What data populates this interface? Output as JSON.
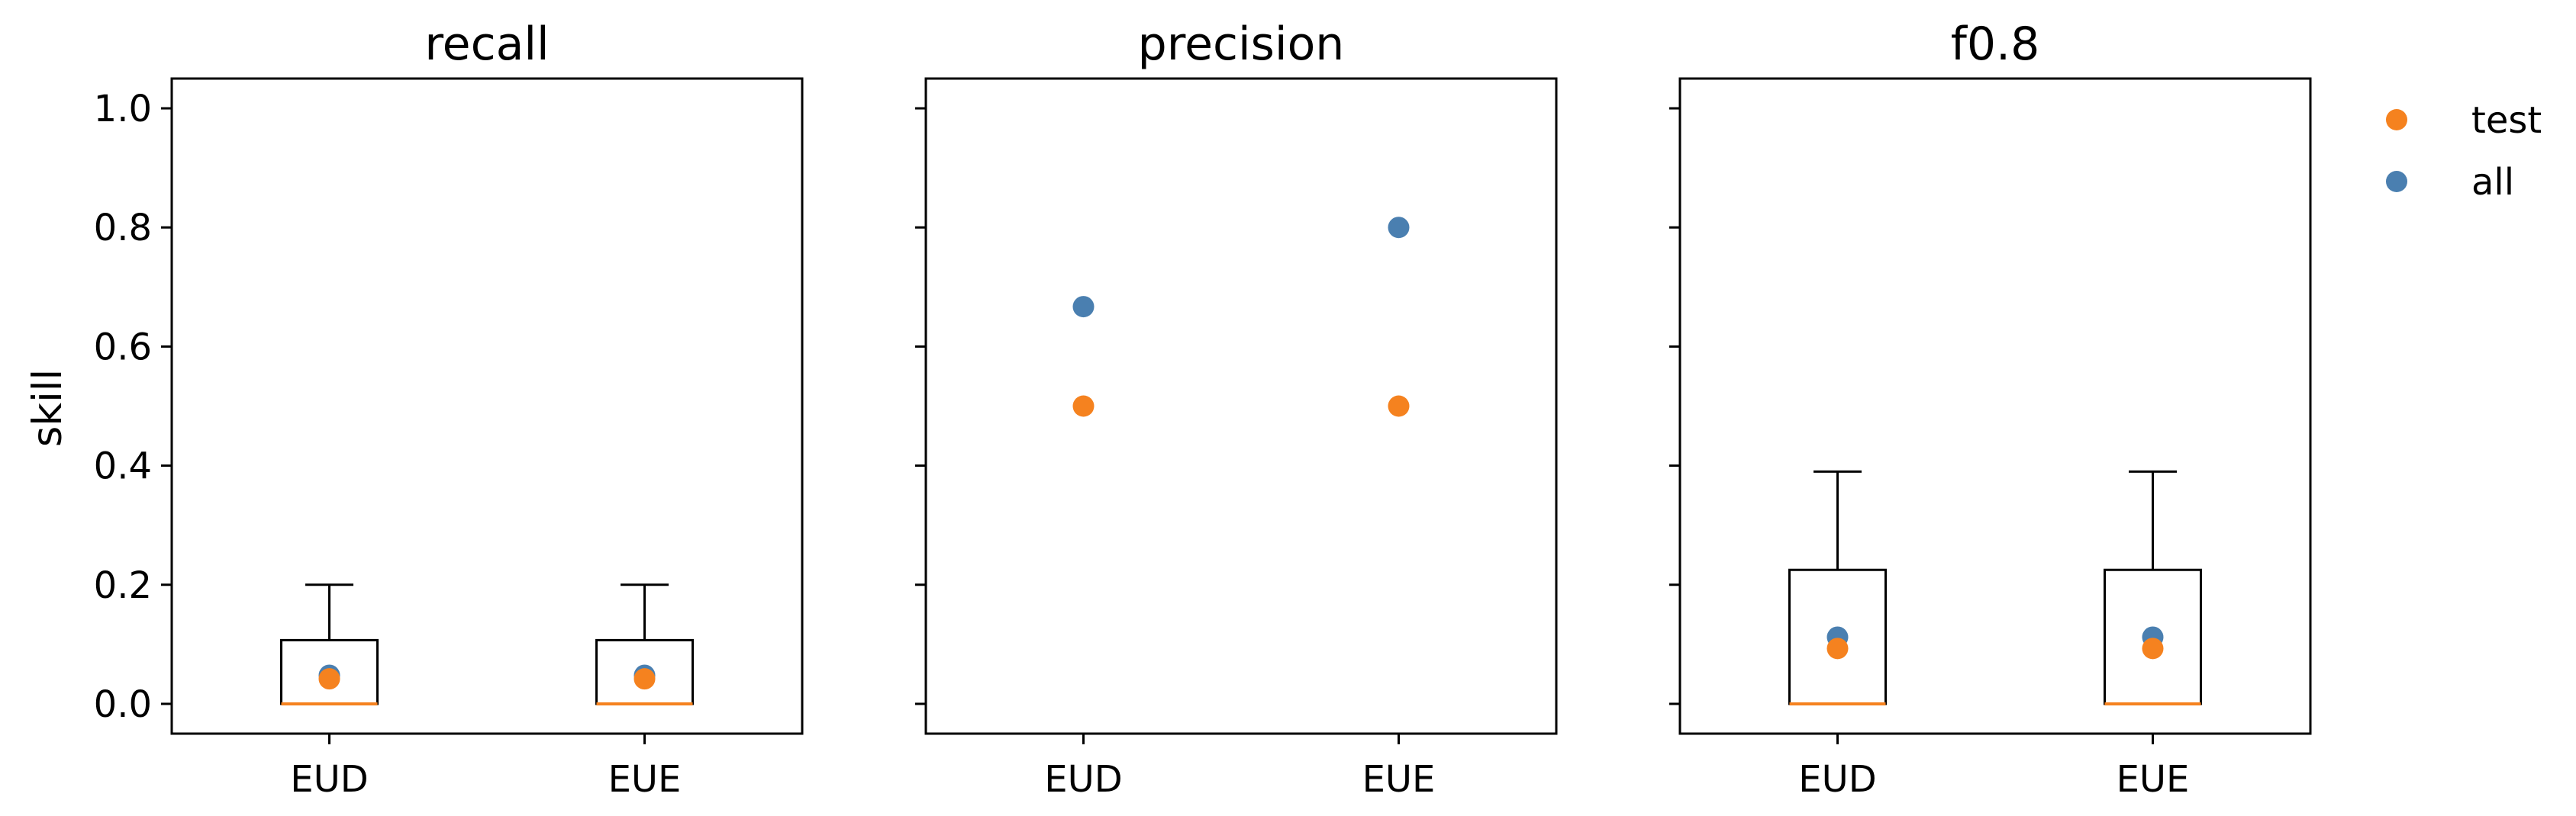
{
  "chart_data": {
    "type": "scatter",
    "layout": "three side-by-side panels sharing the y axis, each with box plots and dot markers",
    "ylabel": "skill",
    "ylim": [
      -0.05,
      1.05
    ],
    "yticks": [
      0.0,
      0.2,
      0.4,
      0.6,
      0.8,
      1.0
    ],
    "ytick_labels": [
      "0.0",
      "0.2",
      "0.4",
      "0.6",
      "0.8",
      "1.0"
    ],
    "categories": [
      "EUD",
      "EUE"
    ],
    "legend": {
      "placement": "outside-right-top",
      "entries": [
        {
          "label": "test",
          "color": "#f5821f"
        },
        {
          "label": "all",
          "color": "#4a7fb0"
        }
      ]
    },
    "colors": {
      "test": "#f5821f",
      "all": "#4a7fb0",
      "median_line": "#f5821f",
      "box": "#000000"
    },
    "panels": [
      {
        "title": "recall",
        "boxes": [
          {
            "category": "EUD",
            "whislo": 0.0,
            "q1": 0.0,
            "median": 0.0,
            "q3": 0.107,
            "whishi": 0.2
          },
          {
            "category": "EUE",
            "whislo": 0.0,
            "q1": 0.0,
            "median": 0.0,
            "q3": 0.107,
            "whishi": 0.2
          }
        ],
        "series": [
          {
            "name": "all",
            "values": [
              0.048,
              0.048
            ]
          },
          {
            "name": "test",
            "values": [
              0.042,
              0.042
            ]
          }
        ]
      },
      {
        "title": "precision",
        "boxes": [],
        "series": [
          {
            "name": "all",
            "values": [
              0.667,
              0.8
            ]
          },
          {
            "name": "test",
            "values": [
              0.5,
              0.5
            ]
          }
        ]
      },
      {
        "title": "f0.8",
        "boxes": [
          {
            "category": "EUD",
            "whislo": 0.0,
            "q1": 0.0,
            "median": 0.0,
            "q3": 0.225,
            "whishi": 0.39
          },
          {
            "category": "EUE",
            "whislo": 0.0,
            "q1": 0.0,
            "median": 0.0,
            "q3": 0.225,
            "whishi": 0.39
          }
        ],
        "series": [
          {
            "name": "all",
            "values": [
              0.112,
              0.112
            ]
          },
          {
            "name": "test",
            "values": [
              0.093,
              0.093
            ]
          }
        ]
      }
    ]
  }
}
